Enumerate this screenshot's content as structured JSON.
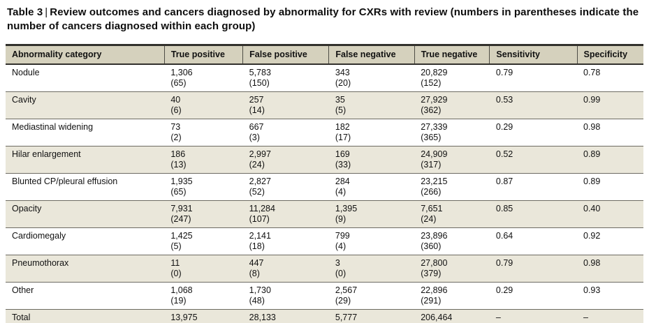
{
  "title": {
    "label": "Table 3",
    "separator": "|",
    "text": "Review outcomes and cancers diagnosed by abnormality for CXRs with review (numbers in parentheses indicate the number of cancers diagnosed within each group)"
  },
  "colors": {
    "header_bg": "#d5d1bd",
    "stripe_bg": "#eae7da",
    "rule": "#6d6b62",
    "heavy_rule": "#32312c"
  },
  "table": {
    "columns": [
      "Abnormality category",
      "True positive",
      "False positive",
      "False negative",
      "True negative",
      "Sensitivity",
      "Specificity"
    ],
    "rows": [
      {
        "cells": [
          {
            "v": "Nodule"
          },
          {
            "v": "1,306",
            "p": "(65)"
          },
          {
            "v": "5,783",
            "p": "(150)"
          },
          {
            "v": "343",
            "p": "(20)"
          },
          {
            "v": "20,829",
            "p": "(152)"
          },
          {
            "v": "0.79"
          },
          {
            "v": "0.78"
          }
        ]
      },
      {
        "cells": [
          {
            "v": "Cavity"
          },
          {
            "v": "40",
            "p": "(6)"
          },
          {
            "v": "257",
            "p": "(14)"
          },
          {
            "v": "35",
            "p": "(5)"
          },
          {
            "v": "27,929",
            "p": "(362)"
          },
          {
            "v": "0.53"
          },
          {
            "v": "0.99"
          }
        ]
      },
      {
        "cells": [
          {
            "v": "Mediastinal widening"
          },
          {
            "v": "73",
            "p": "(2)"
          },
          {
            "v": "667",
            "p": "(3)"
          },
          {
            "v": "182",
            "p": "(17)"
          },
          {
            "v": "27,339",
            "p": "(365)"
          },
          {
            "v": "0.29"
          },
          {
            "v": "0.98"
          }
        ]
      },
      {
        "cells": [
          {
            "v": "Hilar enlargement"
          },
          {
            "v": "186",
            "p": "(13)"
          },
          {
            "v": "2,997",
            "p": "(24)"
          },
          {
            "v": "169",
            "p": "(33)"
          },
          {
            "v": "24,909",
            "p": "(317)"
          },
          {
            "v": "0.52"
          },
          {
            "v": "0.89"
          }
        ]
      },
      {
        "cells": [
          {
            "v": "Blunted CP/pleural effusion"
          },
          {
            "v": "1,935",
            "p": "(65)"
          },
          {
            "v": "2,827",
            "p": "(52)"
          },
          {
            "v": "284",
            "p": "(4)"
          },
          {
            "v": "23,215",
            "p": "(266)"
          },
          {
            "v": "0.87"
          },
          {
            "v": "0.89"
          }
        ]
      },
      {
        "cells": [
          {
            "v": "Opacity"
          },
          {
            "v": "7,931",
            "p": "(247)"
          },
          {
            "v": "11,284",
            "p": "(107)"
          },
          {
            "v": "1,395",
            "p": "(9)"
          },
          {
            "v": "7,651",
            "p": "(24)"
          },
          {
            "v": "0.85"
          },
          {
            "v": "0.40"
          }
        ]
      },
      {
        "cells": [
          {
            "v": "Cardiomegaly"
          },
          {
            "v": "1,425",
            "p": "(5)"
          },
          {
            "v": "2,141",
            "p": "(18)"
          },
          {
            "v": "799",
            "p": "(4)"
          },
          {
            "v": "23,896",
            "p": "(360)"
          },
          {
            "v": "0.64"
          },
          {
            "v": "0.92"
          }
        ]
      },
      {
        "cells": [
          {
            "v": "Pneumothorax"
          },
          {
            "v": "11",
            "p": "(0)"
          },
          {
            "v": "447",
            "p": "(8)"
          },
          {
            "v": "3",
            "p": "(0)"
          },
          {
            "v": "27,800",
            "p": "(379)"
          },
          {
            "v": "0.79"
          },
          {
            "v": "0.98"
          }
        ]
      },
      {
        "cells": [
          {
            "v": "Other"
          },
          {
            "v": "1,068",
            "p": "(19)"
          },
          {
            "v": "1,730",
            "p": "(48)"
          },
          {
            "v": "2,567",
            "p": "(29)"
          },
          {
            "v": "22,896",
            "p": "(291)"
          },
          {
            "v": "0.29"
          },
          {
            "v": "0.93"
          }
        ]
      },
      {
        "cells": [
          {
            "v": "Total"
          },
          {
            "v": "13,975"
          },
          {
            "v": "28,133"
          },
          {
            "v": "5,777"
          },
          {
            "v": "206,464"
          },
          {
            "v": "–"
          },
          {
            "v": "–"
          }
        ]
      }
    ]
  }
}
